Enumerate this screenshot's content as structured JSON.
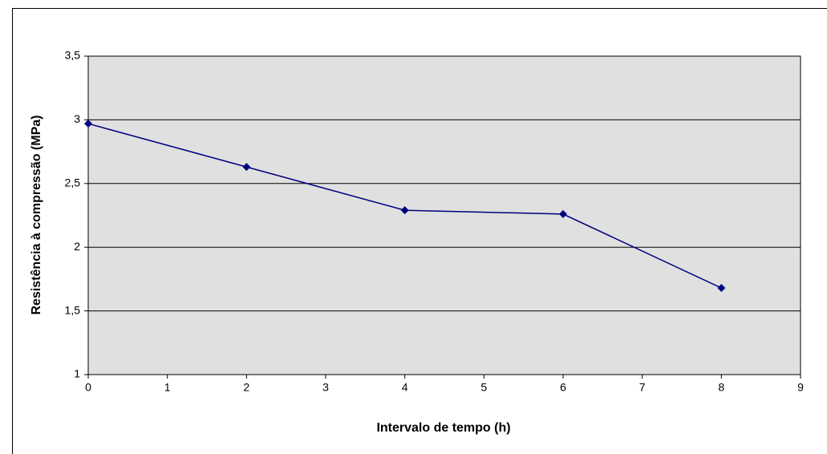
{
  "chart_data": {
    "type": "line",
    "xlabel": "Intervalo de tempo (h)",
    "ylabel": "Resistência à compressão (MPa)",
    "x": [
      0,
      2,
      4,
      6,
      8
    ],
    "series": [
      {
        "color": "#000080",
        "values": [
          2.97,
          2.63,
          2.29,
          2.26,
          1.68
        ]
      }
    ],
    "xlim": [
      0,
      9
    ],
    "xticks": [
      0,
      1,
      2,
      3,
      4,
      5,
      6,
      7,
      8,
      9
    ],
    "ylim": [
      1,
      3.5
    ],
    "yticks": [
      1,
      {
        "value": 1.5,
        "label": "1,5"
      },
      2,
      {
        "value": 2.5,
        "label": "2,5"
      },
      3,
      {
        "value": 3.5,
        "label": "3,5"
      }
    ],
    "grid": true
  }
}
